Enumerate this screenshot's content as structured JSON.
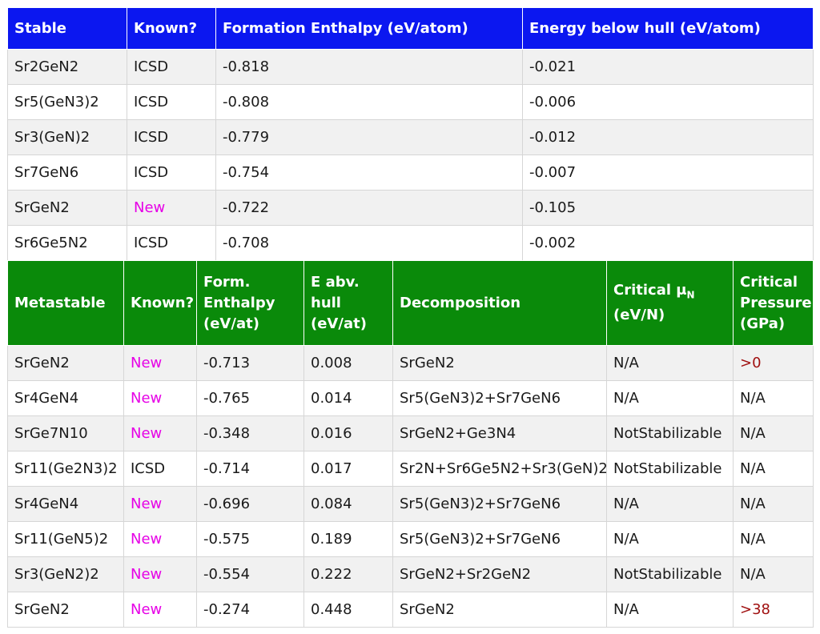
{
  "stable": {
    "headers": [
      "Stable",
      "Known?",
      "Formation Enthalpy (eV/atom)",
      "Energy below hull (eV/atom)"
    ],
    "rows": [
      {
        "formula": "Sr2GeN2",
        "known": "ICSD",
        "enthalpy": "-0.818",
        "hull": "-0.021"
      },
      {
        "formula": "Sr5(GeN3)2",
        "known": "ICSD",
        "enthalpy": "-0.808",
        "hull": "-0.006"
      },
      {
        "formula": "Sr3(GeN)2",
        "known": "ICSD",
        "enthalpy": "-0.779",
        "hull": "-0.012"
      },
      {
        "formula": "Sr7GeN6",
        "known": "ICSD",
        "enthalpy": "-0.754",
        "hull": "-0.007"
      },
      {
        "formula": "SrGeN2",
        "known": "New",
        "enthalpy": "-0.722",
        "hull": "-0.105"
      },
      {
        "formula": "Sr6Ge5N2",
        "known": "ICSD",
        "enthalpy": "-0.708",
        "hull": "-0.002"
      }
    ]
  },
  "metastable": {
    "headers": {
      "name": "Metastable",
      "known": "Known?",
      "enthalpy_1": "Form.",
      "enthalpy_2": "Enthalpy",
      "enthalpy_3": "(eV/at)",
      "hull_1": "E abv.",
      "hull_2": "hull",
      "hull_3": "(eV/at)",
      "decomp": "Decomposition",
      "mu_1": "Critical μ",
      "mu_sub": "N",
      "mu_2": "(eV/N)",
      "press_1": "Critical",
      "press_2": "Pressure",
      "press_3": "(GPa)"
    },
    "rows": [
      {
        "formula": "SrGeN2",
        "known": "New",
        "enthalpy": "-0.713",
        "hull": "0.008",
        "decomp": "SrGeN2",
        "mu": "N/A",
        "pressure": ">0"
      },
      {
        "formula": "Sr4GeN4",
        "known": "New",
        "enthalpy": "-0.765",
        "hull": "0.014",
        "decomp": "Sr5(GeN3)2+Sr7GeN6",
        "mu": "N/A",
        "pressure": "N/A"
      },
      {
        "formula": "SrGe7N10",
        "known": "New",
        "enthalpy": "-0.348",
        "hull": "0.016",
        "decomp": "SrGeN2+Ge3N4",
        "mu": "NotStabilizable",
        "pressure": "N/A"
      },
      {
        "formula": "Sr11(Ge2N3)2",
        "known": "ICSD",
        "enthalpy": "-0.714",
        "hull": "0.017",
        "decomp": "Sr2N+Sr6Ge5N2+Sr3(GeN)2",
        "mu": "NotStabilizable",
        "pressure": "N/A"
      },
      {
        "formula": "Sr4GeN4",
        "known": "New",
        "enthalpy": "-0.696",
        "hull": "0.084",
        "decomp": "Sr5(GeN3)2+Sr7GeN6",
        "mu": "N/A",
        "pressure": "N/A"
      },
      {
        "formula": "Sr11(GeN5)2",
        "known": "New",
        "enthalpy": "-0.575",
        "hull": "0.189",
        "decomp": "Sr5(GeN3)2+Sr7GeN6",
        "mu": "N/A",
        "pressure": "N/A"
      },
      {
        "formula": "Sr3(GeN2)2",
        "known": "New",
        "enthalpy": "-0.554",
        "hull": "0.222",
        "decomp": "SrGeN2+Sr2GeN2",
        "mu": "NotStabilizable",
        "pressure": "N/A"
      },
      {
        "formula": "SrGeN2",
        "known": "New",
        "enthalpy": "-0.274",
        "hull": "0.448",
        "decomp": "SrGeN2",
        "mu": "N/A",
        "pressure": ">38"
      }
    ]
  },
  "colors": {
    "stable_header": "#0b17f0",
    "metastable_header": "#0a8a0a",
    "new_text": "#e600e6",
    "critical_pressure_text": "#a01010"
  }
}
